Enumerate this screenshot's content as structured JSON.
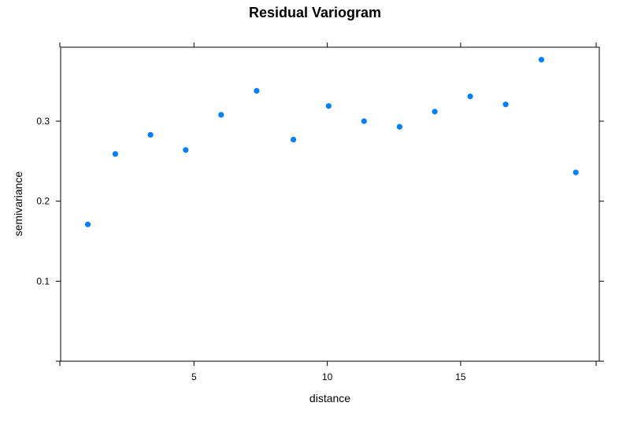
{
  "chart_data": {
    "type": "scatter",
    "title": "Residual Variogram",
    "xlabel": "distance",
    "ylabel": "semivariance",
    "xlim": [
      0,
      20.2
    ],
    "ylim": [
      0,
      0.3925
    ],
    "xticks": [
      5,
      10,
      15
    ],
    "yticks": [
      0.1,
      0.2,
      0.3
    ],
    "grid": false,
    "legend": "none",
    "point_color": "#0080ff",
    "x": [
      1.02,
      2.05,
      3.37,
      4.69,
      6.02,
      7.35,
      8.73,
      10.05,
      11.38,
      12.71,
      14.03,
      15.36,
      16.69,
      18.03,
      19.32
    ],
    "y": [
      0.171,
      0.259,
      0.283,
      0.264,
      0.308,
      0.338,
      0.277,
      0.319,
      0.3,
      0.293,
      0.312,
      0.331,
      0.321,
      0.377,
      0.236
    ]
  }
}
